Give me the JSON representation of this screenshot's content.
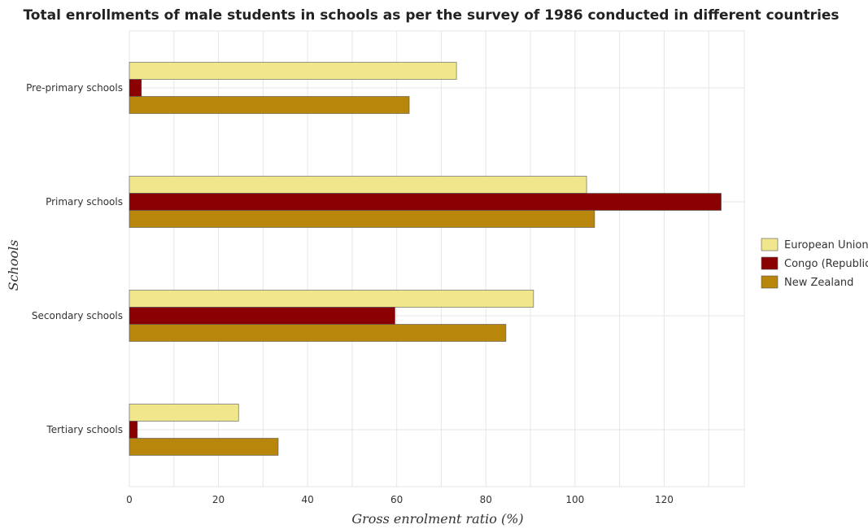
{
  "chart_data": {
    "type": "bar",
    "orientation": "horizontal",
    "title": "Total enrollments of male students in schools as per the survey of 1986 conducted in different countries",
    "xlabel": "Gross enrolment ratio (%)",
    "ylabel": "Schools",
    "categories": [
      "Pre-primary schools",
      "Primary schools",
      "Secondary schools",
      "Tertiary schools"
    ],
    "xlim": [
      0,
      138
    ],
    "xticks": [
      0,
      20,
      40,
      60,
      80,
      100,
      120
    ],
    "grid": true,
    "legend_position": "right",
    "series": [
      {
        "name": "European Union",
        "color": "#f0e68c",
        "values": [
          73.4,
          102.6,
          90.7,
          24.5
        ]
      },
      {
        "name": "Congo (Republic)",
        "color": "#8b0000",
        "values": [
          2.7,
          132.8,
          59.6,
          1.8
        ]
      },
      {
        "name": "New Zealand",
        "color": "#b8860b",
        "values": [
          62.8,
          104.4,
          84.5,
          33.4
        ]
      }
    ]
  }
}
